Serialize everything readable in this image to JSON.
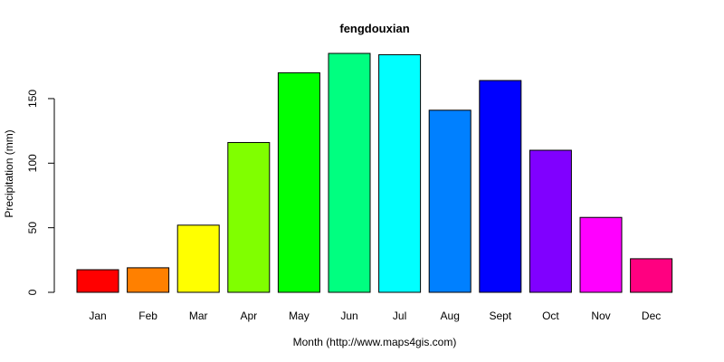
{
  "chart_data": {
    "type": "bar",
    "title": "fengdouxian",
    "xlabel": "Month (http://www.maps4gis.com)",
    "ylabel": "Precipitation (mm)",
    "categories": [
      "Jan",
      "Feb",
      "Mar",
      "Apr",
      "May",
      "Jun",
      "Jul",
      "Aug",
      "Sept",
      "Oct",
      "Nov",
      "Dec"
    ],
    "values": [
      17.5,
      19,
      52,
      116,
      170,
      185,
      184,
      141,
      164,
      110,
      58,
      26
    ],
    "colors": [
      "#FF0000",
      "#FF8000",
      "#FFFF00",
      "#80FF00",
      "#00FF00",
      "#00FF80",
      "#00FFFF",
      "#0080FF",
      "#0000FF",
      "#8000FF",
      "#FF00FF",
      "#FF0080"
    ],
    "yticks": [
      0,
      50,
      100,
      150
    ],
    "ylim": [
      0,
      185
    ],
    "grid": false,
    "legend": "none"
  }
}
